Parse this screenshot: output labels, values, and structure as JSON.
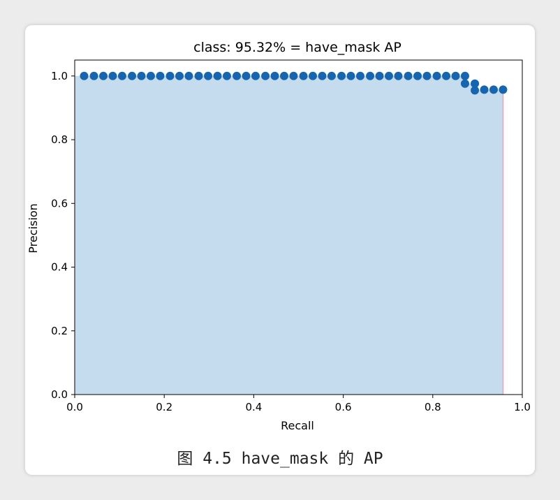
{
  "caption": "图 4.5 have_mask 的 AP",
  "colors": {
    "fill": "#c5dbee",
    "marker": "#1565b0",
    "recall_line": "#e8a0a8",
    "frame": "#000000"
  },
  "chart_data": {
    "type": "area",
    "title": "class: 95.32% = have_mask AP",
    "xlabel": "Recall",
    "ylabel": "Precision",
    "xlim": [
      0.0,
      1.0
    ],
    "ylim": [
      0.0,
      1.05
    ],
    "xticks": [
      "0.0",
      "0.2",
      "0.4",
      "0.6",
      "0.8",
      "1.0"
    ],
    "yticks": [
      "0.0",
      "0.2",
      "0.4",
      "0.6",
      "0.8",
      "1.0"
    ],
    "grid": false,
    "series": [
      {
        "x": [
          0.021,
          0.043,
          0.064,
          0.085,
          0.106,
          0.128,
          0.149,
          0.17,
          0.191,
          0.213,
          0.234,
          0.255,
          0.277,
          0.298,
          0.319,
          0.34,
          0.362,
          0.383,
          0.404,
          0.426,
          0.447,
          0.468,
          0.489,
          0.511,
          0.532,
          0.553,
          0.574,
          0.596,
          0.617,
          0.638,
          0.66,
          0.681,
          0.702,
          0.723,
          0.745,
          0.766,
          0.787,
          0.809,
          0.83,
          0.851,
          0.872,
          0.872,
          0.894,
          0.894,
          0.915,
          0.936,
          0.957
        ],
        "y": [
          1.0,
          1.0,
          1.0,
          1.0,
          1.0,
          1.0,
          1.0,
          1.0,
          1.0,
          1.0,
          1.0,
          1.0,
          1.0,
          1.0,
          1.0,
          1.0,
          1.0,
          1.0,
          1.0,
          1.0,
          1.0,
          1.0,
          1.0,
          1.0,
          1.0,
          1.0,
          1.0,
          1.0,
          1.0,
          1.0,
          1.0,
          1.0,
          1.0,
          1.0,
          1.0,
          1.0,
          1.0,
          1.0,
          1.0,
          1.0,
          1.0,
          0.976,
          0.976,
          0.955,
          0.957,
          0.957,
          0.957
        ]
      }
    ],
    "max_recall": 0.957
  }
}
